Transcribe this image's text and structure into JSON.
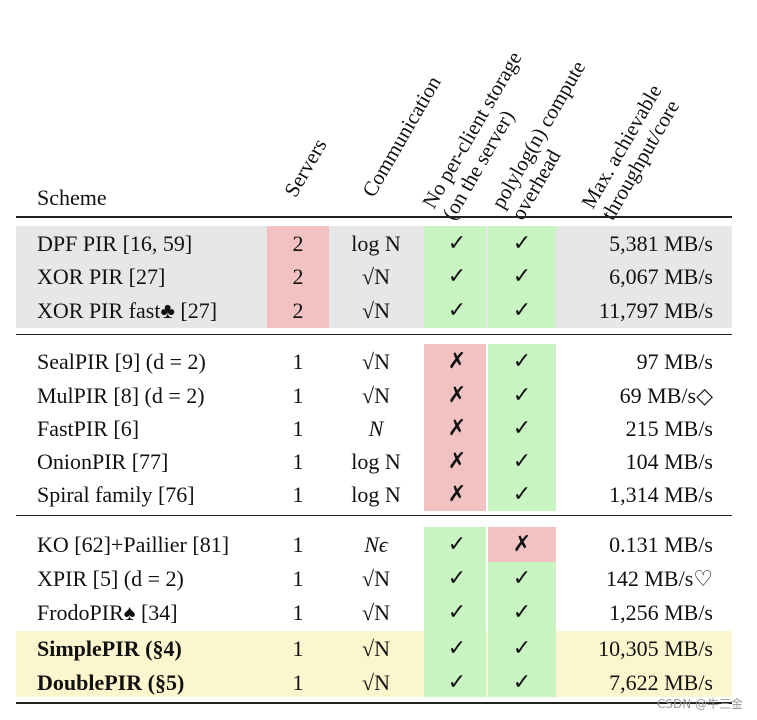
{
  "headers": {
    "scheme": "Scheme",
    "servers": "Servers",
    "communication": "Communication",
    "storage": [
      "No per-client storage",
      "(on the server)"
    ],
    "polylog": [
      "polylog(n) compute",
      "overhead"
    ],
    "throughput": [
      "Max. achievable",
      "throughput/core"
    ]
  },
  "groups": [
    {
      "band": "grey",
      "rows": [
        {
          "scheme": "DPF PIR [16, 59]",
          "servers": "2",
          "comm": "log N",
          "storage": "✓",
          "polylog": "✓",
          "tput": "5,381 MB/s"
        },
        {
          "scheme": "XOR PIR [27]",
          "servers": "2",
          "comm": "√N",
          "storage": "✓",
          "polylog": "✓",
          "tput": "6,067 MB/s"
        },
        {
          "scheme": "XOR PIR fast♣ [27]",
          "servers": "2",
          "comm": "√N",
          "storage": "✓",
          "polylog": "✓",
          "tput": "11,797 MB/s"
        }
      ]
    },
    {
      "band": "none",
      "rows": [
        {
          "scheme": "SealPIR [9] (d = 2)",
          "servers": "1",
          "comm": "√N",
          "storage": "✗",
          "polylog": "✓",
          "tput": "97 MB/s"
        },
        {
          "scheme": "MulPIR [8] (d = 2)",
          "servers": "1",
          "comm": "√N",
          "storage": "✗",
          "polylog": "✓",
          "tput": "69 MB/s◇"
        },
        {
          "scheme": "FastPIR [6]",
          "servers": "1",
          "comm": "N",
          "storage": "✗",
          "polylog": "✓",
          "tput": "215 MB/s"
        },
        {
          "scheme": "OnionPIR [77]",
          "servers": "1",
          "comm": "log N",
          "storage": "✗",
          "polylog": "✓",
          "tput": "104 MB/s"
        },
        {
          "scheme": "Spiral family [76]",
          "servers": "1",
          "comm": "log N",
          "storage": "✗",
          "polylog": "✓",
          "tput": "1,314 MB/s"
        }
      ]
    },
    {
      "band": "mixed",
      "rows": [
        {
          "scheme": "KO [62]+Paillier [81]",
          "servers": "1",
          "comm": "Nϵ",
          "storage": "✓",
          "polylog": "✗",
          "tput": "0.131 MB/s"
        },
        {
          "scheme": "XPIR [5] (d = 2)",
          "servers": "1",
          "comm": "√N",
          "storage": "✓",
          "polylog": "✓",
          "tput": "142 MB/s♡"
        },
        {
          "scheme": "FrodoPIR♠ [34]",
          "servers": "1",
          "comm": "√N",
          "storage": "✓",
          "polylog": "✓",
          "tput": "1,256 MB/s"
        },
        {
          "scheme": "SimplePIR (§4)",
          "servers": "1",
          "comm": "√N",
          "storage": "✓",
          "polylog": "✓",
          "tput": "10,305 MB/s"
        },
        {
          "scheme": "DoublePIR (§5)",
          "servers": "1",
          "comm": "√N",
          "storage": "✓",
          "polylog": "✓",
          "tput": "7,622 MB/s"
        }
      ]
    }
  ],
  "watermark": "CSDN @牛三金",
  "colors": {
    "servers_hl": "#f2c1c1",
    "check_hl": "#c9f5c2",
    "cross_hl": "#f2c1c1",
    "band_grey": "#e7e7e7",
    "band_yellow": "#fcf6cf"
  }
}
